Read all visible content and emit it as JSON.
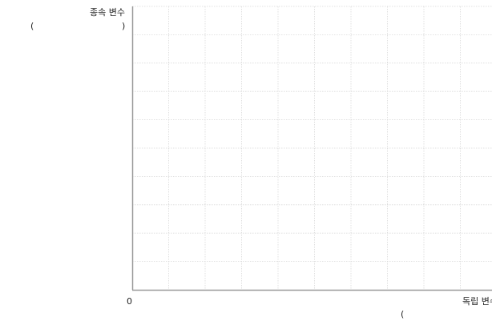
{
  "chart_data": {
    "type": "line",
    "title": "",
    "xlabel": "독립 변수",
    "ylabel": "종속 변수",
    "ylabel_parens": {
      "open": "(",
      "close": ")"
    },
    "xlabel_parens": {
      "open": "("
    },
    "origin_label": "0",
    "grid": true,
    "x_grid_lines": 11,
    "y_grid_lines": 10,
    "series": []
  },
  "colors": {
    "grid": "#d9d9d9",
    "axis": "#9a9a9a",
    "text": "#222222"
  }
}
